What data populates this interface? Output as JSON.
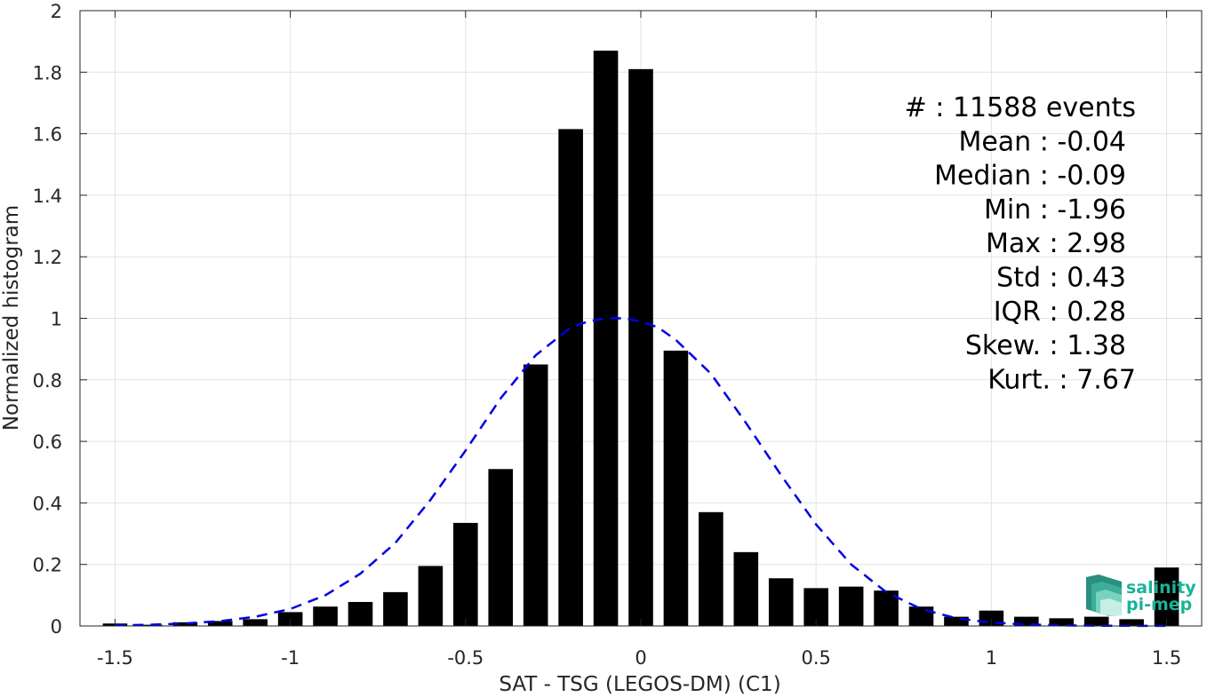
{
  "chart_data": {
    "type": "bar",
    "xlabel": "SAT - TSG (LEGOS-DM) (C1)",
    "ylabel": "Normalized histogram",
    "xlim": [
      -1.6,
      1.6
    ],
    "ylim": [
      0,
      2
    ],
    "grid": true,
    "x_ticks": [
      -1.5,
      -1,
      -0.5,
      0,
      0.5,
      1,
      1.5
    ],
    "x_tick_labels": [
      "-1.5",
      "-1",
      "-0.5",
      "0",
      "0.5",
      "1",
      "1.5"
    ],
    "y_ticks": [
      0,
      0.2,
      0.4,
      0.6,
      0.8,
      1,
      1.2,
      1.4,
      1.6,
      1.8,
      2
    ],
    "y_tick_labels": [
      "0",
      "0.2",
      "0.4",
      "0.6",
      "0.8",
      "1",
      "1.2",
      "1.4",
      "1.6",
      "1.8",
      "2"
    ],
    "bar_color": "#000000",
    "bar_width": 0.07,
    "bars": {
      "x": [
        -1.5,
        -1.4,
        -1.3,
        -1.2,
        -1.1,
        -1.0,
        -0.9,
        -0.8,
        -0.7,
        -0.6,
        -0.5,
        -0.4,
        -0.3,
        -0.2,
        -0.1,
        0.0,
        0.1,
        0.2,
        0.3,
        0.4,
        0.5,
        0.6,
        0.7,
        0.8,
        0.9,
        1.0,
        1.1,
        1.2,
        1.3,
        1.4,
        1.5
      ],
      "values": [
        0.008,
        0.004,
        0.012,
        0.016,
        0.022,
        0.045,
        0.063,
        0.078,
        0.11,
        0.195,
        0.335,
        0.51,
        0.85,
        1.615,
        1.87,
        1.81,
        0.895,
        0.37,
        0.24,
        0.155,
        0.123,
        0.128,
        0.115,
        0.063,
        0.03,
        0.05,
        0.03,
        0.025,
        0.03,
        0.022,
        0.19
      ]
    },
    "fit_curve": {
      "style": "dashed",
      "color": "#0000e6",
      "x": [
        -1.5,
        -1.4,
        -1.3,
        -1.2,
        -1.1,
        -1.0,
        -0.9,
        -0.8,
        -0.7,
        -0.6,
        -0.5,
        -0.4,
        -0.3,
        -0.2,
        -0.15,
        -0.1,
        -0.05,
        0.0,
        0.05,
        0.1,
        0.2,
        0.3,
        0.4,
        0.5,
        0.6,
        0.7,
        0.8,
        0.9,
        1.0,
        1.1,
        1.2,
        1.3,
        1.4,
        1.5
      ],
      "values": [
        0.002,
        0.004,
        0.008,
        0.016,
        0.03,
        0.055,
        0.1,
        0.17,
        0.27,
        0.41,
        0.57,
        0.74,
        0.88,
        0.97,
        0.99,
        1.0,
        1.0,
        0.99,
        0.97,
        0.93,
        0.82,
        0.66,
        0.49,
        0.33,
        0.2,
        0.11,
        0.055,
        0.025,
        0.011,
        0.005,
        0.002,
        0.001,
        0.0005,
        0.0002
      ]
    },
    "annotations": [
      "#  : 11588 events",
      "Mean : -0.04",
      "Median : -0.09",
      "Min : -1.96",
      "Max : 2.98",
      "Std : 0.43",
      "IQR : 0.28",
      "Skew. : 1.38",
      "Kurt. : 7.67"
    ]
  },
  "logo": {
    "line1": "salinity",
    "line2": "pi-mep",
    "color": "#1ab399"
  }
}
